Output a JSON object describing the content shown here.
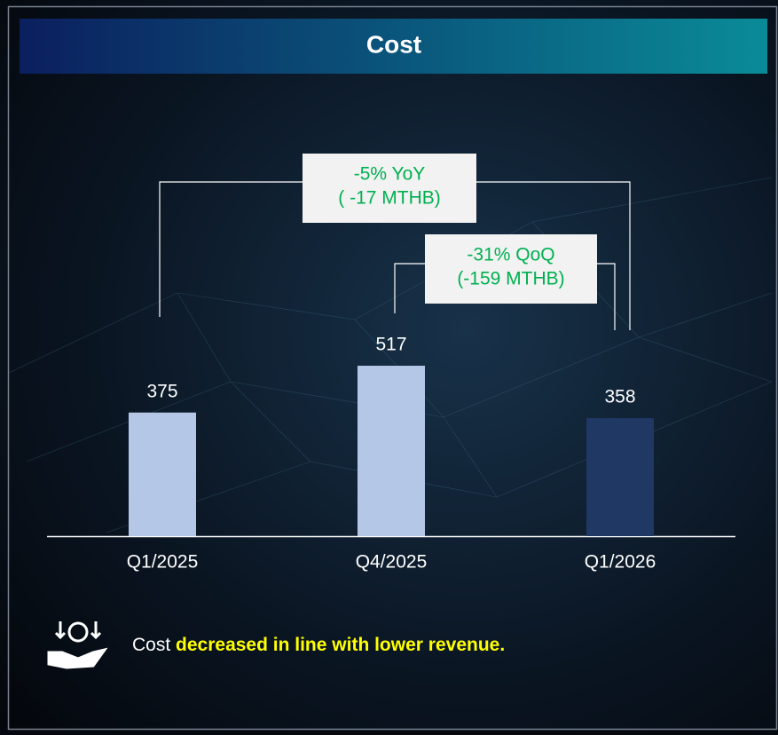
{
  "chart_data": {
    "type": "bar",
    "title": "Cost",
    "categories": [
      "Q1/2025",
      "Q4/2025",
      "Q1/2026"
    ],
    "values": [
      375,
      517,
      358
    ],
    "colors": [
      "#b4c7e7",
      "#b4c7e7",
      "#1f3864"
    ],
    "annotations": [
      {
        "lines": [
          "-5% YoY",
          "( -17 MTHB)"
        ],
        "color": "#00b050"
      },
      {
        "lines": [
          "-31% QoQ",
          "(-159 MTHB)"
        ],
        "color": "#00b050"
      }
    ]
  },
  "footer": {
    "lead": "Cost",
    "highlight": "decreased in line with lower revenue."
  }
}
